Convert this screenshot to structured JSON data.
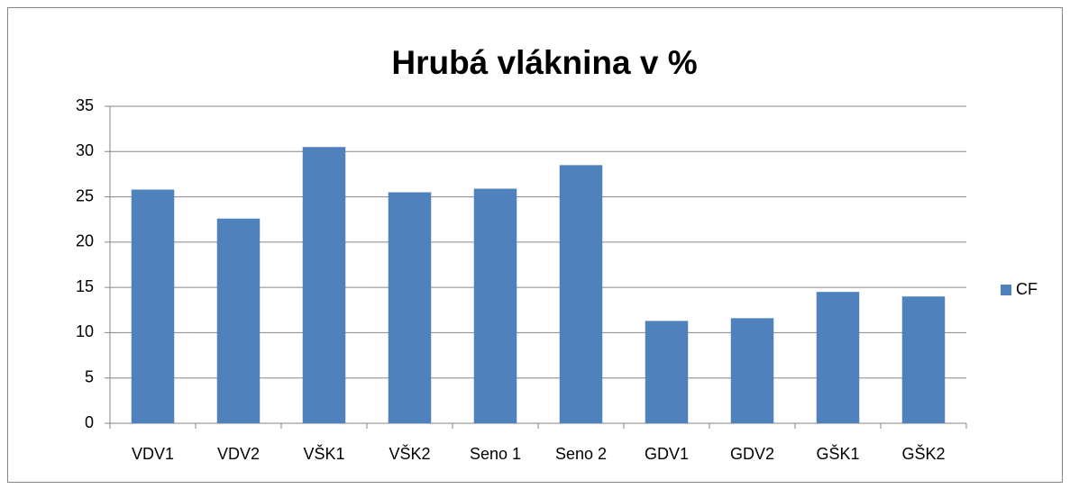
{
  "chart_data": {
    "type": "bar",
    "title": "Hrubá vláknina v %",
    "categories": [
      "VDV1",
      "VDV2",
      "VŠK1",
      "VŠK2",
      "Seno 1",
      "Seno 2",
      "GDV1",
      "GDV2",
      "GŠK1",
      "GŠK2"
    ],
    "series": [
      {
        "name": "CF",
        "color": "#4f81bd",
        "values": [
          25.8,
          22.6,
          30.5,
          25.5,
          25.9,
          28.5,
          11.3,
          11.6,
          14.5,
          14.0
        ]
      }
    ],
    "ylim": [
      0,
      35
    ],
    "yticks": [
      0,
      5,
      10,
      15,
      20,
      25,
      30,
      35
    ],
    "grid": true,
    "legend": "right"
  }
}
